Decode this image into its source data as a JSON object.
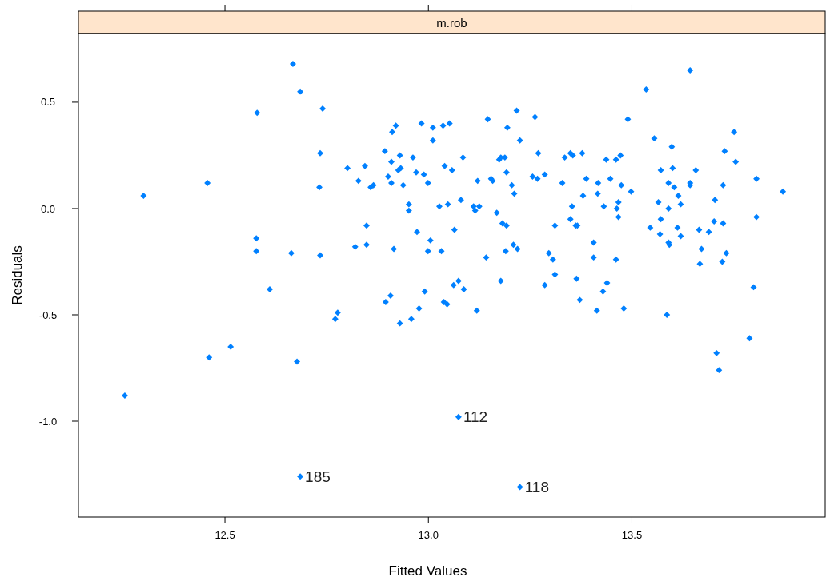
{
  "chart_data": {
    "type": "scatter",
    "title": "m.rob",
    "xlabel": "Fitted Values",
    "ylabel": "Residuals",
    "color": "#0080ff",
    "marker": "diamond",
    "xlim": [
      12.14,
      13.975
    ],
    "ylim": [
      -1.451,
      0.823
    ],
    "xticks": [
      12.5,
      {
        "value": 13,
        "label": "13.0"
      },
      13.5
    ],
    "yticks": [
      {
        "value": -1,
        "label": "-1.0"
      },
      -0.5,
      {
        "value": 0,
        "label": "0.0"
      },
      0.5
    ],
    "x": [
      12.254,
      12.3,
      12.457,
      12.461,
      12.514,
      12.579,
      12.577,
      12.577,
      12.61,
      12.663,
      12.667,
      12.677,
      12.685,
      12.685,
      12.74,
      12.734,
      12.732,
      12.734,
      12.777,
      12.771,
      12.801,
      12.82,
      12.828,
      12.844,
      12.848,
      12.848,
      12.858,
      12.865,
      12.893,
      12.909,
      12.901,
      12.909,
      12.93,
      12.926,
      12.932,
      12.938,
      12.911,
      12.92,
      12.952,
      12.952,
      12.962,
      12.97,
      12.983,
      12.989,
      12.999,
      13.011,
      13.011,
      13.036,
      13.052,
      13.04,
      13.058,
      13.085,
      13.027,
      13.048,
      13.08,
      12.972,
      13.005,
      12.999,
      13.032,
      12.915,
      13.064,
      13.121,
      13.146,
      13.111,
      13.115,
      13.125,
      13.142,
      13.154,
      13.158,
      13.168,
      13.174,
      13.178,
      13.188,
      13.192,
      13.194,
      13.205,
      13.211,
      13.182,
      13.192,
      13.19,
      13.209,
      13.219,
      13.217,
      13.225,
      13.262,
      13.27,
      13.256,
      13.268,
      13.286,
      13.311,
      13.296,
      13.306,
      13.311,
      13.329,
      13.335,
      13.349,
      13.355,
      13.353,
      13.349,
      13.362,
      13.364,
      13.378,
      13.38,
      13.178,
      13.286,
      13.074,
      13.062,
      12.895,
      12.907,
      12.93,
      12.958,
      12.977,
      12.991,
      13.038,
      13.046,
      13.087,
      13.119,
      13.372,
      13.074,
      13.225,
      13.643,
      13.535,
      13.49,
      13.555,
      13.598,
      13.751,
      13.728,
      13.755,
      13.437,
      13.461,
      13.472,
      13.388,
      13.417,
      13.447,
      13.474,
      13.498,
      13.416,
      13.431,
      13.467,
      13.463,
      13.467,
      13.571,
      13.6,
      13.657,
      13.59,
      13.604,
      13.614,
      13.565,
      13.62,
      13.59,
      13.571,
      13.545,
      13.569,
      13.612,
      13.62,
      13.59,
      13.592,
      13.643,
      13.643,
      13.724,
      13.704,
      13.806,
      13.871,
      13.806,
      13.702,
      13.724,
      13.665,
      13.689,
      13.671,
      13.732,
      13.722,
      13.667,
      13.406,
      13.406,
      13.461,
      13.366,
      13.799,
      13.439,
      13.429,
      13.414,
      13.48,
      13.586,
      13.789,
      13.708,
      13.714
    ],
    "values": [
      -0.88,
      0.06,
      0.12,
      -0.7,
      -0.65,
      0.45,
      -0.14,
      -0.2,
      -0.38,
      -0.21,
      0.68,
      -0.72,
      0.55,
      -1.26,
      0.47,
      0.26,
      0.1,
      -0.22,
      -0.49,
      -0.52,
      0.19,
      -0.18,
      0.13,
      0.2,
      -0.08,
      -0.17,
      0.1,
      0.11,
      0.27,
      0.22,
      0.15,
      0.12,
      0.25,
      0.18,
      0.19,
      0.11,
      0.36,
      0.39,
      0.02,
      -0.01,
      0.24,
      0.17,
      0.4,
      0.16,
      0.12,
      0.38,
      0.32,
      0.39,
      0.4,
      0.2,
      0.18,
      0.24,
      0.01,
      0.02,
      0.04,
      -0.11,
      -0.15,
      -0.2,
      -0.2,
      -0.19,
      -0.1,
      0.13,
      0.42,
      0.01,
      -0.01,
      0.01,
      -0.23,
      0.14,
      0.13,
      -0.02,
      0.23,
      0.24,
      0.24,
      0.17,
      0.38,
      0.11,
      0.07,
      -0.07,
      -0.08,
      -0.2,
      -0.17,
      -0.19,
      0.46,
      0.32,
      0.43,
      0.26,
      0.15,
      0.14,
      0.16,
      -0.08,
      -0.21,
      -0.24,
      -0.31,
      0.12,
      0.24,
      0.26,
      0.25,
      0.01,
      -0.05,
      -0.08,
      -0.33,
      0.26,
      0.06,
      -0.34,
      -0.36,
      -0.34,
      -0.36,
      -0.44,
      -0.41,
      -0.54,
      -0.52,
      -0.47,
      -0.39,
      -0.44,
      -0.45,
      -0.38,
      -0.48,
      -0.43,
      -0.98,
      -1.31,
      0.65,
      0.56,
      0.42,
      0.33,
      0.29,
      0.36,
      0.27,
      0.22,
      0.23,
      0.23,
      0.25,
      0.14,
      0.12,
      0.14,
      0.11,
      0.08,
      0.07,
      0.01,
      0.03,
      0,
      -0.04,
      0.18,
      0.19,
      0.18,
      0.12,
      0.1,
      0.06,
      0.03,
      0.02,
      0,
      -0.05,
      -0.09,
      -0.12,
      -0.09,
      -0.13,
      -0.16,
      -0.17,
      0.11,
      0.12,
      0.11,
      0.04,
      0.14,
      0.08,
      -0.04,
      -0.06,
      -0.07,
      -0.1,
      -0.11,
      -0.19,
      -0.21,
      -0.25,
      -0.26,
      -0.16,
      -0.23,
      -0.24,
      -0.08,
      -0.37,
      -0.35,
      -0.39,
      -0.48,
      -0.47,
      -0.5,
      -0.61,
      -0.68,
      -0.76
    ],
    "annotations": [
      {
        "text": "185",
        "x": 12.685,
        "y": -1.26
      },
      {
        "text": "112",
        "x": 13.074,
        "y": -0.98
      },
      {
        "text": "118",
        "x": 13.225,
        "y": -1.31
      }
    ]
  }
}
